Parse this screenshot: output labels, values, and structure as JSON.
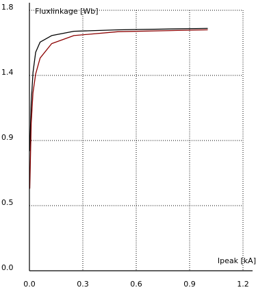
{
  "chart_data": {
    "type": "line",
    "xlabel": "Ipeak [kA]",
    "ylabel": "Fluxlinkage [Wb]",
    "xlim": [
      0,
      1.2
    ],
    "ylim": [
      0,
      1.8
    ],
    "x_ticks": [
      "0.0",
      "0.3",
      "0.6",
      "0.9",
      "1.2"
    ],
    "x_tick_values": [
      0,
      0.3,
      0.6,
      0.9,
      1.2
    ],
    "y_ticks": [
      "0.0",
      "0.5",
      "0.9",
      "1.4",
      "1.8"
    ],
    "y_tick_values": [
      0,
      0.45,
      0.9,
      1.35,
      1.8
    ],
    "grid": true,
    "series": [
      {
        "color": "#000000",
        "x": [
          0.002,
          0.01,
          0.02,
          0.035,
          0.06,
          0.125,
          0.25,
          0.5,
          1.0
        ],
        "values": [
          0.83,
          1.16,
          1.37,
          1.51,
          1.58,
          1.625,
          1.655,
          1.665,
          1.675
        ]
      },
      {
        "color": "#8b0000",
        "x": [
          0.002,
          0.01,
          0.02,
          0.035,
          0.06,
          0.125,
          0.25,
          0.5,
          1.0
        ],
        "values": [
          0.57,
          1.02,
          1.23,
          1.36,
          1.47,
          1.57,
          1.625,
          1.652,
          1.665
        ]
      }
    ]
  }
}
